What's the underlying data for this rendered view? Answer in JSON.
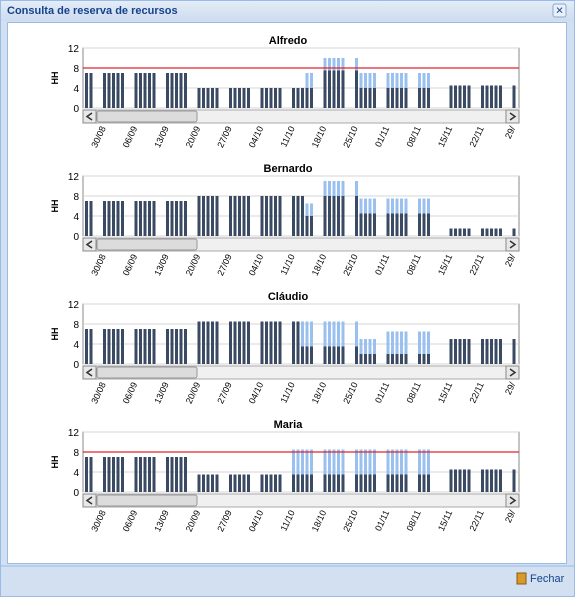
{
  "window_title": "Consulta de reserva de recursos",
  "close_button": "×",
  "button": "Fechar",
  "chart_data": [
    {
      "type": "bar",
      "title": "Alfredo",
      "ylabel": "HH",
      "ylim": [
        0,
        12
      ],
      "yticks": [
        0,
        4,
        8,
        12
      ],
      "grid": true,
      "limit": 8,
      "limit_color": "#e0242a",
      "categories": [
        null,
        null,
        "30/08",
        null,
        null,
        null,
        null,
        "06/09",
        null,
        null,
        null,
        null,
        "13/09",
        null,
        null,
        null,
        null,
        "20/09",
        null,
        null,
        null,
        null,
        "27/09",
        null,
        null,
        null,
        null,
        "04/10",
        null,
        null,
        null,
        null,
        "11/10",
        null,
        null,
        null,
        null,
        "18/10",
        null,
        null,
        null,
        null,
        "25/10",
        null,
        null,
        null,
        null,
        "01/11",
        null,
        null,
        null,
        null,
        "08/11",
        null,
        null,
        null,
        null,
        "15/11",
        null,
        null,
        null,
        null,
        "22/11",
        null,
        null,
        null,
        null,
        "29/"
      ],
      "series": [
        {
          "color": "#3a4a63",
          "values": [
            7,
            7,
            7,
            7,
            7,
            7,
            7,
            7,
            7,
            7,
            7,
            7,
            7,
            7,
            7,
            7,
            7,
            4,
            4,
            4,
            4,
            4,
            4,
            4,
            4,
            4,
            4,
            4,
            4,
            4,
            4,
            4,
            4,
            4,
            4,
            4,
            4,
            7.5,
            7.5,
            7.5,
            7.5,
            7.5,
            7.5,
            4,
            4,
            4,
            4,
            4,
            4,
            4,
            4,
            4,
            4,
            4,
            4,
            0,
            0,
            4.5,
            4.5,
            4.5,
            4.5,
            4.5,
            4.5,
            4.5,
            4.5,
            4.5,
            4.5,
            4.5
          ]
        },
        {
          "color": "#99c0ef",
          "values": [
            0,
            0,
            0,
            0,
            0,
            0,
            0,
            0,
            0,
            0,
            0,
            0,
            0,
            0,
            0,
            0,
            0,
            0,
            0,
            0,
            0,
            0,
            0,
            0,
            0,
            0,
            0,
            0,
            0,
            0,
            0,
            0,
            0,
            0,
            0,
            3,
            3,
            2.5,
            2.5,
            2.5,
            2.5,
            2.5,
            2.5,
            3,
            3,
            3,
            3,
            3,
            3,
            3,
            3,
            3,
            3,
            3,
            3,
            0,
            0,
            0,
            0,
            0,
            0,
            0,
            0,
            0,
            0,
            0,
            0,
            0
          ]
        }
      ]
    },
    {
      "type": "bar",
      "title": "Bernardo",
      "ylabel": "HH",
      "ylim": [
        0,
        12
      ],
      "yticks": [
        0,
        4,
        8,
        12
      ],
      "grid": true,
      "categories": [
        null,
        null,
        "30/08",
        null,
        null,
        null,
        null,
        "06/09",
        null,
        null,
        null,
        null,
        "13/09",
        null,
        null,
        null,
        null,
        "20/09",
        null,
        null,
        null,
        null,
        "27/09",
        null,
        null,
        null,
        null,
        "04/10",
        null,
        null,
        null,
        null,
        "11/10",
        null,
        null,
        null,
        null,
        "18/10",
        null,
        null,
        null,
        null,
        "25/10",
        null,
        null,
        null,
        null,
        "01/11",
        null,
        null,
        null,
        null,
        "08/11",
        null,
        null,
        null,
        null,
        "15/11",
        null,
        null,
        null,
        null,
        "22/11",
        null,
        null,
        null,
        null,
        "29/"
      ],
      "series": [
        {
          "color": "#3a4a63",
          "values": [
            7,
            7,
            7,
            7,
            7,
            7,
            7,
            7,
            7,
            7,
            7,
            7,
            7,
            7,
            7,
            7,
            7,
            8,
            8,
            8,
            8,
            8,
            8,
            8,
            8,
            8,
            8,
            8,
            8,
            8,
            8,
            8,
            8,
            8,
            8,
            4,
            4,
            8,
            8,
            8,
            8,
            8,
            8,
            4.5,
            4.5,
            4.5,
            4.5,
            4.5,
            4.5,
            4.5,
            4.5,
            4.5,
            4.5,
            4.5,
            4.5,
            0,
            0,
            1.5,
            1.5,
            1.5,
            1.5,
            1.5,
            1.5,
            1.5,
            1.5,
            1.5,
            1.5,
            1.5
          ]
        },
        {
          "color": "#99c0ef",
          "values": [
            0,
            0,
            0,
            0,
            0,
            0,
            0,
            0,
            0,
            0,
            0,
            0,
            0,
            0,
            0,
            0,
            0,
            0,
            0,
            0,
            0,
            0,
            0,
            0,
            0,
            0,
            0,
            0,
            0,
            0,
            0,
            0,
            0,
            0,
            0,
            2.5,
            2.5,
            3,
            3,
            3,
            3,
            3,
            3,
            3,
            3,
            3,
            3,
            3,
            3,
            3,
            3,
            3,
            3,
            3,
            3,
            0,
            0,
            0,
            0,
            0,
            0,
            0,
            0,
            0,
            0,
            0,
            0,
            0
          ]
        }
      ]
    },
    {
      "type": "bar",
      "title": "Cláudio",
      "ylabel": "HH",
      "ylim": [
        0,
        12
      ],
      "yticks": [
        0,
        4,
        8,
        12
      ],
      "grid": true,
      "categories": [
        null,
        null,
        "30/08",
        null,
        null,
        null,
        null,
        "06/09",
        null,
        null,
        null,
        null,
        "13/09",
        null,
        null,
        null,
        null,
        "20/09",
        null,
        null,
        null,
        null,
        "27/09",
        null,
        null,
        null,
        null,
        "04/10",
        null,
        null,
        null,
        null,
        "11/10",
        null,
        null,
        null,
        null,
        "18/10",
        null,
        null,
        null,
        null,
        "25/10",
        null,
        null,
        null,
        null,
        "01/11",
        null,
        null,
        null,
        null,
        "08/11",
        null,
        null,
        null,
        null,
        "15/11",
        null,
        null,
        null,
        null,
        "22/11",
        null,
        null,
        null,
        null,
        "29/"
      ],
      "series": [
        {
          "color": "#3a4a63",
          "values": [
            7,
            7,
            7,
            7,
            7,
            7,
            7,
            7,
            7,
            7,
            7,
            7,
            7,
            7,
            7,
            7,
            7,
            8.5,
            8.5,
            8.5,
            8.5,
            8.5,
            8.5,
            8.5,
            8.5,
            8.5,
            8.5,
            8.5,
            8.5,
            8.5,
            8.5,
            8.5,
            8.5,
            8.5,
            3.5,
            3.5,
            3.5,
            3.5,
            3.5,
            3.5,
            3.5,
            3.5,
            3.5,
            2,
            2,
            2,
            2,
            2,
            2,
            2,
            2,
            2,
            2,
            2,
            2,
            0,
            0,
            5,
            5,
            5,
            5,
            5,
            5,
            5,
            5,
            5,
            5,
            5
          ]
        },
        {
          "color": "#99c0ef",
          "values": [
            0,
            0,
            0,
            0,
            0,
            0,
            0,
            0,
            0,
            0,
            0,
            0,
            0,
            0,
            0,
            0,
            0,
            0,
            0,
            0,
            0,
            0,
            0,
            0,
            0,
            0,
            0,
            0,
            0,
            0,
            0,
            0,
            0,
            0,
            5,
            5,
            5,
            5,
            5,
            5,
            5,
            5,
            5,
            3,
            3,
            3,
            3,
            4.5,
            4.5,
            4.5,
            4.5,
            4.5,
            4.5,
            4.5,
            4.5,
            0,
            0,
            0,
            0,
            0,
            0,
            0,
            0,
            0,
            0,
            0,
            0,
            0
          ]
        }
      ]
    },
    {
      "type": "bar",
      "title": "Maria",
      "ylabel": "HH",
      "ylim": [
        0,
        12
      ],
      "yticks": [
        0,
        4,
        8,
        12
      ],
      "grid": true,
      "limit": 8,
      "limit_color": "#e0242a",
      "categories": [
        null,
        null,
        "30/08",
        null,
        null,
        null,
        null,
        "06/09",
        null,
        null,
        null,
        null,
        "13/09",
        null,
        null,
        null,
        null,
        "20/09",
        null,
        null,
        null,
        null,
        "27/09",
        null,
        null,
        null,
        null,
        "04/10",
        null,
        null,
        null,
        null,
        "11/10",
        null,
        null,
        null,
        null,
        "18/10",
        null,
        null,
        null,
        null,
        "25/10",
        null,
        null,
        null,
        null,
        "01/11",
        null,
        null,
        null,
        null,
        "08/11",
        null,
        null,
        null,
        null,
        "15/11",
        null,
        null,
        null,
        null,
        "22/11",
        null,
        null,
        null,
        null,
        "29/"
      ],
      "series": [
        {
          "color": "#3a4a63",
          "values": [
            7,
            7,
            7,
            7,
            7,
            7,
            7,
            7,
            7,
            7,
            7,
            7,
            7,
            7,
            7,
            7,
            7,
            3.5,
            3.5,
            3.5,
            3.5,
            3.5,
            3.5,
            3.5,
            3.5,
            3.5,
            3.5,
            3.5,
            3.5,
            3.5,
            3.5,
            3.5,
            3.5,
            3.5,
            3.5,
            3.5,
            3.5,
            3.5,
            3.5,
            3.5,
            3.5,
            3.5,
            3.5,
            3.5,
            3.5,
            3.5,
            3.5,
            3.5,
            3.5,
            3.5,
            3.5,
            3.5,
            3.5,
            3.5,
            3.5,
            0,
            0,
            4.5,
            4.5,
            4.5,
            4.5,
            4.5,
            4.5,
            4.5,
            4.5,
            4.5,
            4.5,
            4.5
          ]
        },
        {
          "color": "#99c0ef",
          "values": [
            0,
            0,
            0,
            0,
            0,
            0,
            0,
            0,
            0,
            0,
            0,
            0,
            0,
            0,
            0,
            0,
            0,
            0,
            0,
            0,
            0,
            0,
            0,
            0,
            0,
            0,
            0,
            0,
            0,
            0,
            0,
            0,
            5,
            5,
            5,
            5,
            5,
            5,
            5,
            5,
            5,
            5,
            5,
            5,
            5,
            5,
            5,
            5,
            5,
            5,
            5,
            5,
            5,
            5,
            5,
            0,
            0,
            0,
            0,
            0,
            0,
            0,
            0,
            0,
            0,
            0,
            0,
            0
          ]
        }
      ]
    }
  ]
}
